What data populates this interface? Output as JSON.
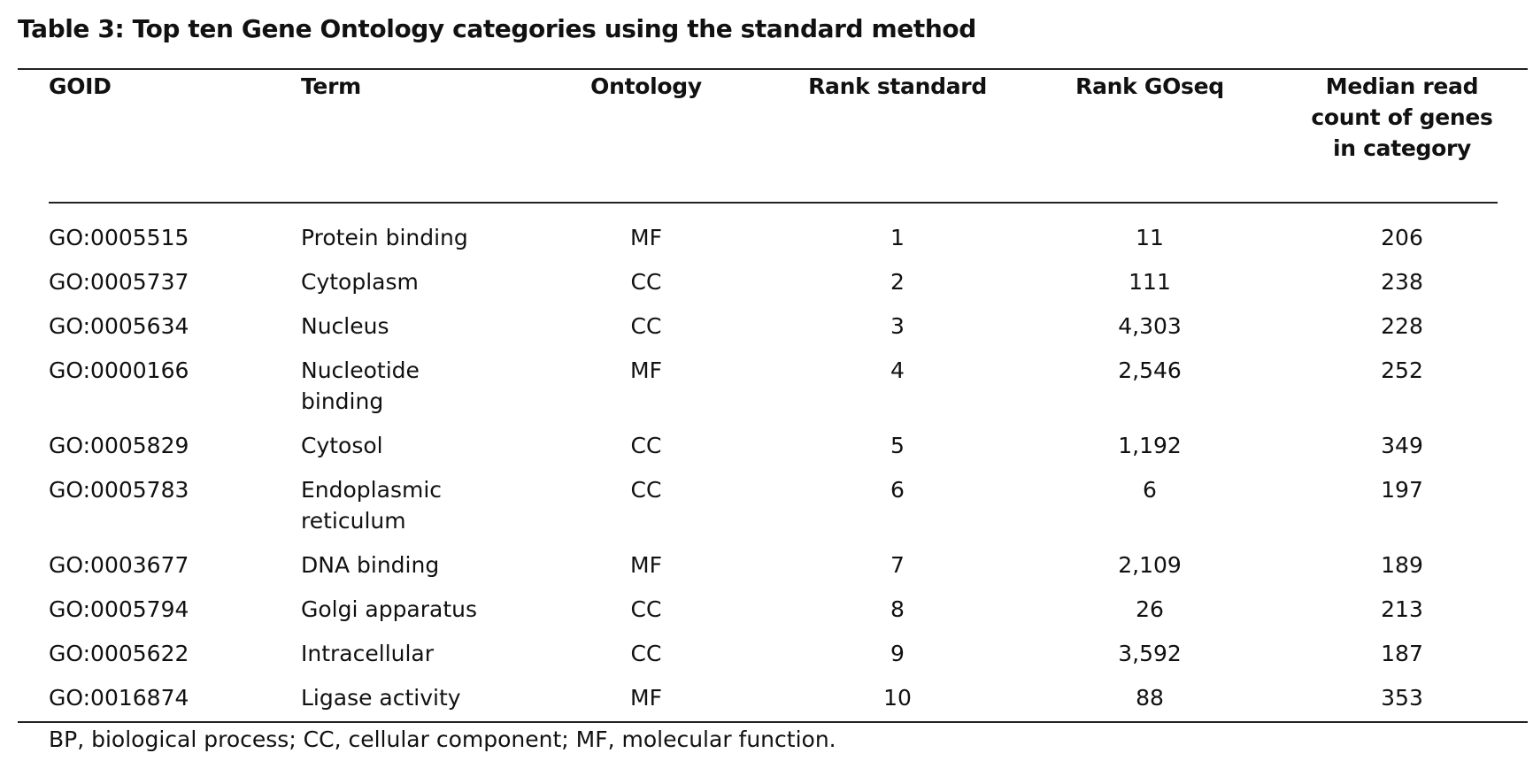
{
  "title": "Table 3: Top ten Gene Ontology categories using the standard method",
  "headers": {
    "goid": "GOID",
    "term": "Term",
    "ontology": "Ontology",
    "rank_standard": "Rank standard",
    "rank_goseq": "Rank GOseq",
    "median": "Median read count of genes in category"
  },
  "rows": [
    {
      "goid": "GO:0005515",
      "term": "Protein binding",
      "ontology": "MF",
      "rank_standard": "1",
      "rank_goseq": "11",
      "median": "206"
    },
    {
      "goid": "GO:0005737",
      "term": "Cytoplasm",
      "ontology": "CC",
      "rank_standard": "2",
      "rank_goseq": "111",
      "median": "238"
    },
    {
      "goid": "GO:0005634",
      "term": "Nucleus",
      "ontology": "CC",
      "rank_standard": "3",
      "rank_goseq": "4,303",
      "median": "228"
    },
    {
      "goid": "GO:0000166",
      "term": "Nucleotide binding",
      "ontology": "MF",
      "rank_standard": "4",
      "rank_goseq": "2,546",
      "median": "252"
    },
    {
      "goid": "GO:0005829",
      "term": "Cytosol",
      "ontology": "CC",
      "rank_standard": "5",
      "rank_goseq": "1,192",
      "median": "349"
    },
    {
      "goid": "GO:0005783",
      "term": "Endoplasmic reticulum",
      "ontology": "CC",
      "rank_standard": "6",
      "rank_goseq": "6",
      "median": "197"
    },
    {
      "goid": "GO:0003677",
      "term": "DNA binding",
      "ontology": "MF",
      "rank_standard": "7",
      "rank_goseq": "2,109",
      "median": "189"
    },
    {
      "goid": "GO:0005794",
      "term": "Golgi apparatus",
      "ontology": "CC",
      "rank_standard": "8",
      "rank_goseq": "26",
      "median": "213"
    },
    {
      "goid": "GO:0005622",
      "term": "Intracellular",
      "ontology": "CC",
      "rank_standard": "9",
      "rank_goseq": "3,592",
      "median": "187"
    },
    {
      "goid": "GO:0016874",
      "term": "Ligase activity",
      "ontology": "MF",
      "rank_standard": "10",
      "rank_goseq": "88",
      "median": "353"
    }
  ],
  "footnote": "BP, biological process; CC, cellular component; MF, molecular function."
}
